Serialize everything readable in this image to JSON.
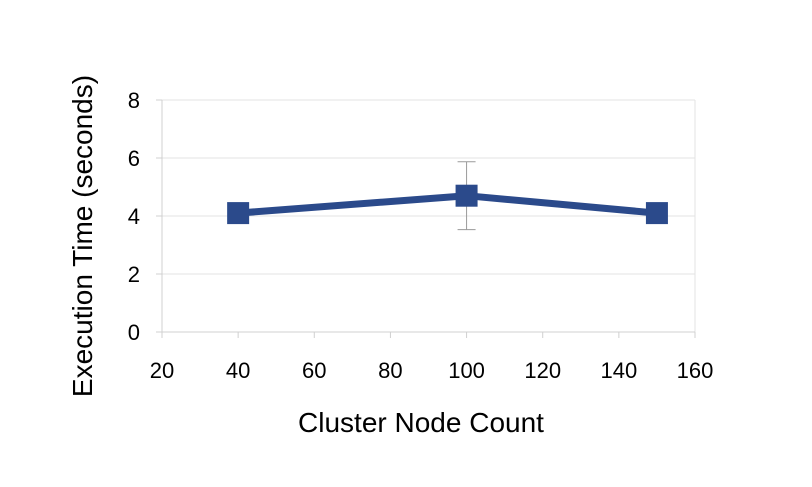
{
  "chart_data": {
    "type": "line",
    "title": "",
    "xlabel": "Cluster Node Count",
    "ylabel": "Execution Time (seconds)",
    "xlim": [
      20,
      160
    ],
    "ylim": [
      0,
      8
    ],
    "x_ticks": [
      20,
      40,
      60,
      80,
      100,
      120,
      140,
      160
    ],
    "y_ticks": [
      0,
      2,
      4,
      6,
      8
    ],
    "grid": "horizontal",
    "legend": "none",
    "series": [
      {
        "x": [
          40,
          100,
          150
        ],
        "y": [
          4.1,
          4.7,
          4.1
        ],
        "error": [
          null,
          1.17,
          null
        ],
        "color": "#2b4a8b",
        "marker": "square"
      }
    ]
  }
}
